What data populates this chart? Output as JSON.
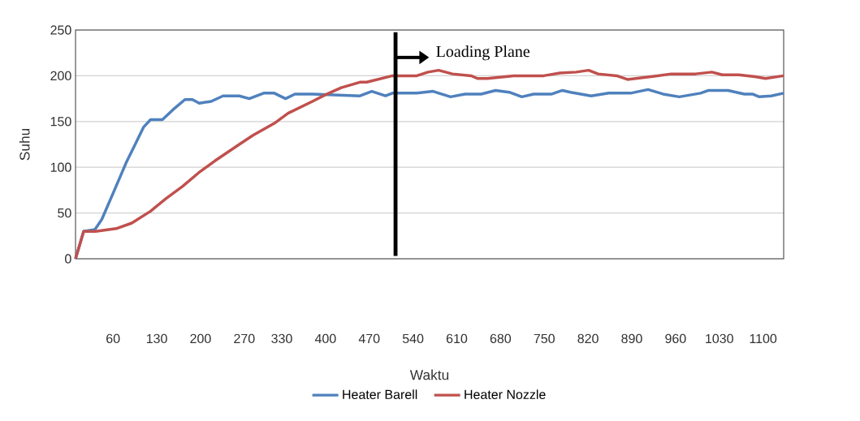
{
  "chart_data": {
    "type": "line",
    "xlabel": "Waktu",
    "ylabel": "Suhu",
    "xlim": [
      0,
      1133
    ],
    "ylim": [
      0,
      250
    ],
    "xticks": [
      60,
      130,
      200,
      270,
      330,
      400,
      470,
      540,
      610,
      680,
      750,
      820,
      890,
      960,
      1030,
      1100
    ],
    "yticks": [
      0,
      50,
      100,
      150,
      200,
      250
    ],
    "grid": "y",
    "legend": "bottom",
    "ref_lines": [
      {
        "axis": "x",
        "value": 512,
        "label": "Loading Plane",
        "color": "#000000"
      }
    ],
    "series": [
      {
        "name": "Heater Barell",
        "color": "#4f81bd",
        "x": [
          0,
          13,
          31,
          42,
          61,
          81,
          94,
          109,
          120,
          139,
          156,
          175,
          187,
          198,
          217,
          236,
          262,
          278,
          301,
          318,
          336,
          351,
          379,
          455,
          474,
          496,
          507,
          546,
          572,
          600,
          623,
          649,
          672,
          694,
          714,
          733,
          762,
          779,
          792,
          825,
          853,
          888,
          916,
          940,
          966,
          1000,
          1013,
          1044,
          1070,
          1083,
          1094,
          1113,
          1133
        ],
        "values": [
          0,
          30,
          32,
          43,
          73,
          105,
          123,
          144,
          152,
          152,
          163,
          174,
          174,
          170,
          172,
          178,
          178,
          175,
          181,
          181,
          175,
          180,
          180,
          178,
          183,
          178,
          181,
          181,
          183,
          177,
          180,
          180,
          184,
          182,
          177,
          180,
          180,
          184,
          182,
          178,
          181,
          181,
          185,
          180,
          177,
          181,
          184,
          184,
          180,
          180,
          177,
          178,
          181
        ]
      },
      {
        "name": "Heater Nozzle",
        "color": "#c0504d",
        "x": [
          0,
          13,
          32,
          65,
          90,
          120,
          145,
          171,
          197,
          223,
          249,
          262,
          284,
          318,
          340,
          379,
          399,
          425,
          455,
          466,
          507,
          546,
          564,
          581,
          603,
          633,
          643,
          659,
          701,
          749,
          775,
          801,
          821,
          836,
          866,
          883,
          931,
          953,
          992,
          1018,
          1035,
          1061,
          1087,
          1104,
          1133
        ],
        "values": [
          0,
          30,
          30,
          33,
          39,
          52,
          66,
          79,
          94,
          107,
          119,
          125,
          135,
          148,
          159,
          172,
          179,
          187,
          193,
          193,
          200,
          200,
          204,
          206,
          202,
          200,
          197,
          197,
          200,
          200,
          203,
          204,
          206,
          202,
          200,
          196,
          200,
          202,
          202,
          204,
          201,
          201,
          199,
          197,
          200
        ]
      }
    ]
  }
}
